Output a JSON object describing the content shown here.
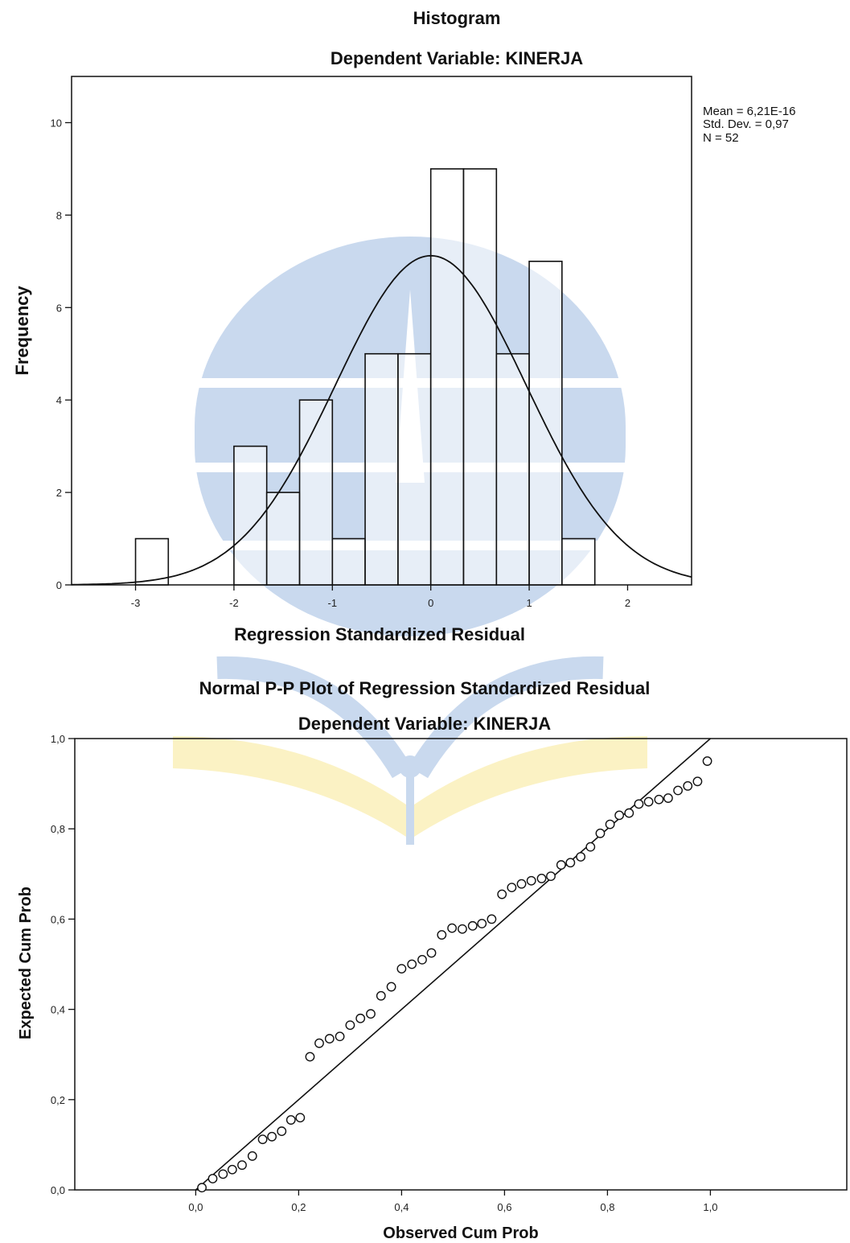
{
  "watermark": {
    "colors": {
      "blue": "#c9d9ee",
      "yellow": "#fbf2c4"
    }
  },
  "chart_data": [
    {
      "type": "bar",
      "title": "Histogram",
      "subtitle": "Dependent Variable: KINERJA",
      "xlabel": "Regression Standardized Residual",
      "ylabel": "Frequency",
      "xlim": [
        -3.65,
        2.65
      ],
      "ylim": [
        0,
        11
      ],
      "xticks": [
        -3,
        -2,
        -1,
        0,
        1,
        2
      ],
      "xtick_labels": [
        "-3",
        "-2",
        "-1",
        "0",
        "1",
        "2"
      ],
      "yticks": [
        0,
        2,
        4,
        6,
        8,
        10
      ],
      "ytick_labels": [
        "0",
        "2",
        "4",
        "6",
        "8",
        "10"
      ],
      "bin_edges": [
        -3.0,
        -2.667,
        -2.333,
        -2.0,
        -1.667,
        -1.333,
        -1.0,
        -0.667,
        -0.333,
        0.0,
        0.333,
        0.667,
        1.0,
        1.333,
        1.667
      ],
      "values": [
        1,
        0,
        0,
        3,
        2,
        4,
        1,
        5,
        5,
        9,
        9,
        5,
        7,
        1
      ],
      "stats": [
        "Mean = 6,21E-16",
        "Std. Dev. = 0,97",
        "N = 52"
      ],
      "normal_curve": {
        "mean": 0.0,
        "sd": 0.97,
        "n": 52,
        "bin_width": 0.333
      },
      "grid": false
    },
    {
      "type": "scatter",
      "title": "Normal P-P Plot of Regression Standardized Residual",
      "subtitle": "Dependent Variable: KINERJA",
      "xlabel": "Observed Cum Prob",
      "ylabel": "Expected Cum Prob",
      "xlim": [
        -0.235,
        1.265
      ],
      "ylim": [
        0,
        1
      ],
      "xticks": [
        0,
        0.2,
        0.4,
        0.6,
        0.8,
        1.0
      ],
      "xtick_labels": [
        "0,0",
        "0,2",
        "0,4",
        "0,6",
        "0,8",
        "1,0"
      ],
      "yticks": [
        0,
        0.2,
        0.4,
        0.6,
        0.8,
        1.0
      ],
      "ytick_labels": [
        "0,0",
        "0,2",
        "0,4",
        "0,6",
        "0,8",
        "1,0"
      ],
      "reference_line": [
        [
          0,
          0
        ],
        [
          1,
          1
        ]
      ],
      "points": [
        [
          0.012,
          0.005
        ],
        [
          0.033,
          0.025
        ],
        [
          0.053,
          0.035
        ],
        [
          0.071,
          0.045
        ],
        [
          0.09,
          0.055
        ],
        [
          0.11,
          0.075
        ],
        [
          0.13,
          0.112
        ],
        [
          0.148,
          0.118
        ],
        [
          0.167,
          0.13
        ],
        [
          0.185,
          0.155
        ],
        [
          0.203,
          0.16
        ],
        [
          0.222,
          0.295
        ],
        [
          0.24,
          0.325
        ],
        [
          0.26,
          0.335
        ],
        [
          0.28,
          0.34
        ],
        [
          0.3,
          0.365
        ],
        [
          0.32,
          0.38
        ],
        [
          0.34,
          0.39
        ],
        [
          0.36,
          0.43
        ],
        [
          0.38,
          0.45
        ],
        [
          0.4,
          0.49
        ],
        [
          0.42,
          0.5
        ],
        [
          0.44,
          0.51
        ],
        [
          0.458,
          0.525
        ],
        [
          0.478,
          0.565
        ],
        [
          0.498,
          0.58
        ],
        [
          0.518,
          0.578
        ],
        [
          0.538,
          0.585
        ],
        [
          0.556,
          0.59
        ],
        [
          0.575,
          0.6
        ],
        [
          0.595,
          0.655
        ],
        [
          0.614,
          0.67
        ],
        [
          0.633,
          0.678
        ],
        [
          0.652,
          0.685
        ],
        [
          0.672,
          0.69
        ],
        [
          0.69,
          0.695
        ],
        [
          0.71,
          0.72
        ],
        [
          0.728,
          0.725
        ],
        [
          0.748,
          0.738
        ],
        [
          0.767,
          0.76
        ],
        [
          0.786,
          0.79
        ],
        [
          0.805,
          0.81
        ],
        [
          0.823,
          0.83
        ],
        [
          0.842,
          0.835
        ],
        [
          0.861,
          0.855
        ],
        [
          0.88,
          0.86
        ],
        [
          0.9,
          0.865
        ],
        [
          0.918,
          0.868
        ],
        [
          0.937,
          0.885
        ],
        [
          0.956,
          0.895
        ],
        [
          0.975,
          0.905
        ],
        [
          0.994,
          0.95
        ]
      ],
      "grid": false
    }
  ]
}
